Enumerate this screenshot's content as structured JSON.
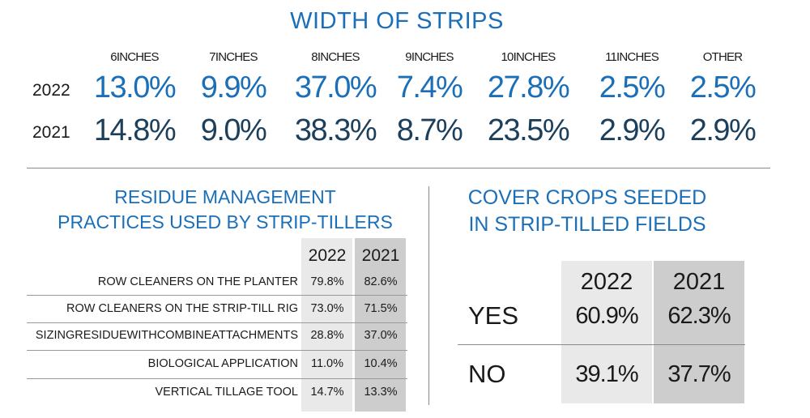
{
  "chart_data": [
    {
      "type": "table",
      "title": "WIDTH OF STRIPS",
      "categories": [
        "6INCHES",
        "7INCHES",
        "8INCHES",
        "9INCHES",
        "10INCHES",
        "11INCHES",
        "OTHER"
      ],
      "series": [
        {
          "name": "2022",
          "values": [
            13.0,
            9.9,
            37.0,
            7.4,
            27.8,
            2.5,
            2.5
          ],
          "labels": [
            "13.0%",
            "9.9%",
            "37.0%",
            "7.4%",
            "27.8%",
            "2.5%",
            "2.5%"
          ]
        },
        {
          "name": "2021",
          "values": [
            14.8,
            9.0,
            38.3,
            8.7,
            23.5,
            2.9,
            2.9
          ],
          "labels": [
            "14.8%",
            "9.0%",
            "38.3%",
            "8.7%",
            "23.5%",
            "2.9%",
            "2.9%"
          ]
        }
      ]
    },
    {
      "type": "table",
      "title_lines": [
        "RESIDUE MANAGEMENT",
        "PRACTICES USED BY STRIP-TILLERS"
      ],
      "columns": [
        "2022",
        "2021"
      ],
      "rows": [
        {
          "label": "ROW CLEANERS ON THE PLANTER",
          "values": [
            79.8,
            82.6
          ],
          "labels": [
            "79.8%",
            "82.6%"
          ]
        },
        {
          "label": "ROW CLEANERS ON THE STRIP-TILL RIG",
          "values": [
            73.0,
            71.5
          ],
          "labels": [
            "73.0%",
            "71.5%"
          ]
        },
        {
          "label": "SIZINGRESIDUEWITHCOMBINEATTACHMENTS",
          "values": [
            28.8,
            37.0
          ],
          "labels": [
            "28.8%",
            "37.0%"
          ]
        },
        {
          "label": "BIOLOGICAL APPLICATION",
          "values": [
            11.0,
            10.4
          ],
          "labels": [
            "11.0%",
            "10.4%"
          ]
        },
        {
          "label": "VERTICAL TILLAGE TOOL",
          "values": [
            14.7,
            13.3
          ],
          "labels": [
            "14.7%",
            "13.3%"
          ]
        }
      ]
    },
    {
      "type": "table",
      "title_lines": [
        "COVER CROPS SEEDED",
        "IN STRIP-TILLED FIELDS"
      ],
      "columns": [
        "2022",
        "2021"
      ],
      "rows": [
        {
          "label": "YES",
          "values": [
            60.9,
            62.3
          ],
          "labels": [
            "60.9%",
            "62.3%"
          ]
        },
        {
          "label": "NO",
          "values": [
            39.1,
            37.7
          ],
          "labels": [
            "39.1%",
            "37.7%"
          ]
        }
      ]
    }
  ],
  "colors": {
    "title_blue": "#1a6fb8",
    "value_2022": "#1a6fb8",
    "value_2021": "#1c3f5c",
    "shade_2022": "#e9e9e9",
    "shade_2021": "#cdcdcd"
  }
}
